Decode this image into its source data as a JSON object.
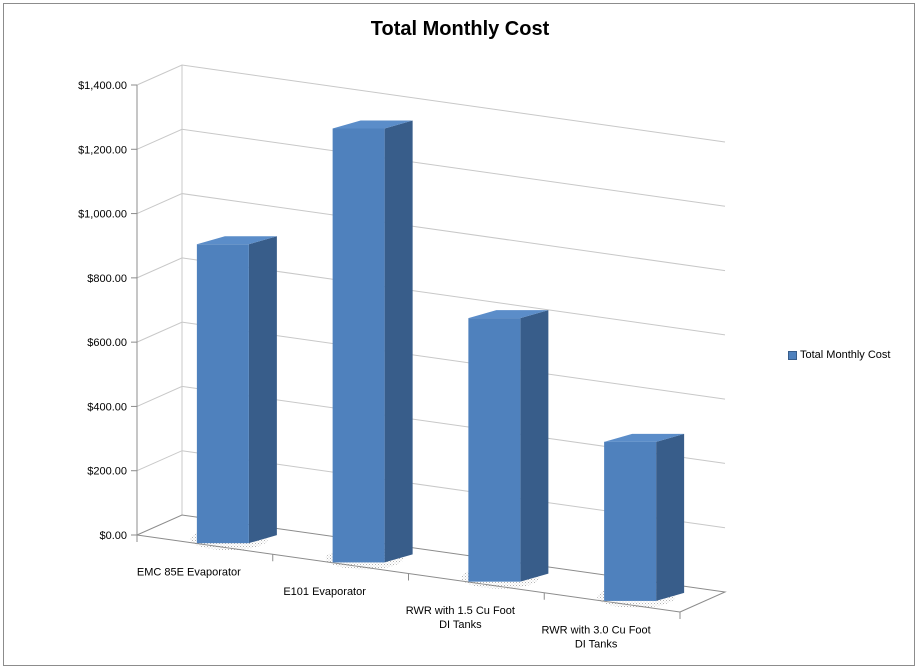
{
  "chart_data": {
    "type": "bar",
    "title": "Total Monthly Cost",
    "categories": [
      [
        "EMC 85E Evaporator"
      ],
      [
        "E101 Evaporator"
      ],
      [
        "RWR with 1.5 Cu Foot",
        "DI Tanks"
      ],
      [
        "RWR with 3.0 Cu Foot",
        "DI Tanks"
      ]
    ],
    "series": [
      {
        "name": "Total Monthly Cost",
        "values": [
          930,
          1350,
          820,
          495
        ]
      }
    ],
    "ylim": [
      0,
      1400
    ],
    "yticks": [
      0,
      200,
      400,
      600,
      800,
      1000,
      1200,
      1400
    ],
    "ytick_labels": [
      "$0.00",
      "$200.00",
      "$400.00",
      "$600.00",
      "$800.00",
      "$1,000.00",
      "$1,200.00",
      "$1,400.00"
    ],
    "grid": true,
    "legend_position": "right",
    "colors": {
      "bar_front": "#4f81bd",
      "bar_top": "#5b8dc9",
      "bar_side": "#385d8a",
      "grid": "#c8c8c8"
    }
  }
}
